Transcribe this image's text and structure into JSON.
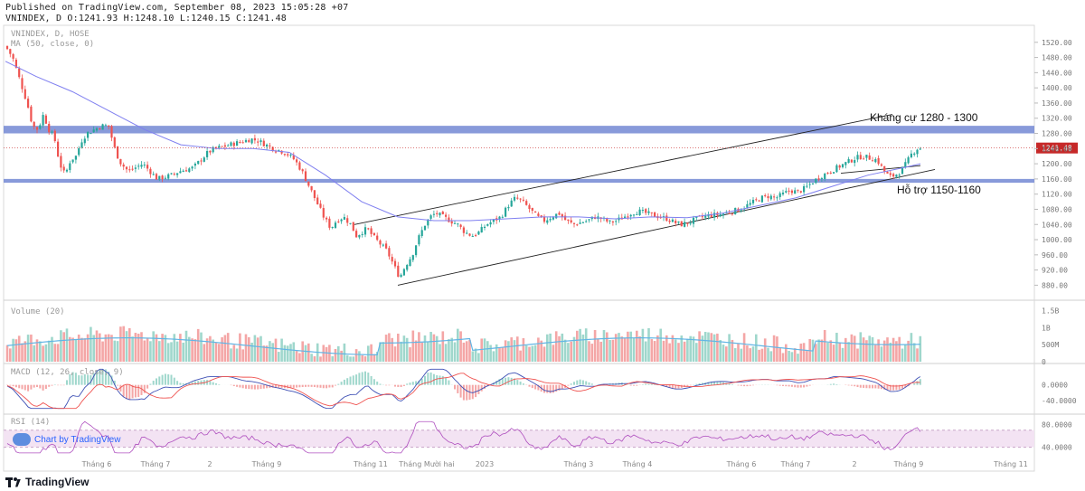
{
  "header": {
    "published": "Published on TradingView.com, September 08, 2023 15:05:28 +07",
    "ohlc": "VNINDEX, D O:1241.93 H:1248.10 L:1240.15 C:1241.48"
  },
  "legend": {
    "symbol": "VNINDEX, D, HOSE",
    "ma": "MA (50, close, 0)",
    "volume": "Volume (20)",
    "macd": "MACD (12, 26, close, 9)",
    "rsi": "RSI (14)"
  },
  "watermark": "Chart by TradingView",
  "footer_brand": "TradingView",
  "colors": {
    "up": "#26a69a",
    "down": "#ef5350",
    "zone": "#7b8fd6",
    "ma": "#7f7ff0",
    "price_label": "#c62828",
    "vol_up": "#9fd7cc",
    "vol_down": "#f4a6a6",
    "vol_ma": "#62b5e5",
    "rsi_band": "#f3e3f3",
    "rsi_line": "#9c27b0"
  },
  "chart_data": {
    "type": "candlestick",
    "title": "VNINDEX, D, HOSE",
    "last_price": 1241.48,
    "last_price_label": "1241.48",
    "ylim": [
      850,
      1560
    ],
    "y_ticks": [
      1520,
      1480,
      1440,
      1400,
      1360,
      1320,
      1280,
      1240,
      1200,
      1160,
      1120,
      1080,
      1040,
      1000,
      960,
      920,
      880
    ],
    "y_tick_labels": [
      "1520.00",
      "1480.00",
      "1440.00",
      "1400.00",
      "1360.00",
      "1320.00",
      "1280.00",
      "1240.00",
      "1200.00",
      "1160.00",
      "1120.00",
      "1080.00",
      "1040.00",
      "1000.00",
      "960.00",
      "920.00",
      "880.00"
    ],
    "x_index_range": [
      0,
      1140
    ],
    "x_ticks": [
      {
        "label": "Tháng 6",
        "x": 107
      },
      {
        "label": "Tháng 7",
        "x": 172
      },
      {
        "label": "2",
        "x": 232
      },
      {
        "label": "Tháng 9",
        "x": 295
      },
      {
        "label": "Tháng 11",
        "x": 410
      },
      {
        "label": "Tháng Mười hai",
        "x": 472
      },
      {
        "label": "2023",
        "x": 536
      },
      {
        "label": "Tháng 3",
        "x": 640
      },
      {
        "label": "Tháng 4",
        "x": 705
      },
      {
        "label": "Tháng 6",
        "x": 820
      },
      {
        "label": "Tháng 7",
        "x": 880
      },
      {
        "label": "2",
        "x": 945
      },
      {
        "label": "Tháng 9",
        "x": 1005
      },
      {
        "label": "Tháng 11",
        "x": 1118
      }
    ],
    "price_path": [
      [
        6,
        1510
      ],
      [
        14,
        1480
      ],
      [
        22,
        1420
      ],
      [
        30,
        1360
      ],
      [
        36,
        1300
      ],
      [
        42,
        1290
      ],
      [
        48,
        1330
      ],
      [
        54,
        1290
      ],
      [
        60,
        1270
      ],
      [
        66,
        1200
      ],
      [
        72,
        1170
      ],
      [
        78,
        1210
      ],
      [
        84,
        1220
      ],
      [
        90,
        1260
      ],
      [
        96,
        1280
      ],
      [
        104,
        1290
      ],
      [
        112,
        1300
      ],
      [
        120,
        1300
      ],
      [
        128,
        1230
      ],
      [
        134,
        1200
      ],
      [
        142,
        1180
      ],
      [
        150,
        1190
      ],
      [
        158,
        1200
      ],
      [
        166,
        1180
      ],
      [
        174,
        1160
      ],
      [
        182,
        1165
      ],
      [
        190,
        1170
      ],
      [
        198,
        1180
      ],
      [
        206,
        1185
      ],
      [
        214,
        1190
      ],
      [
        222,
        1210
      ],
      [
        230,
        1230
      ],
      [
        238,
        1240
      ],
      [
        246,
        1245
      ],
      [
        254,
        1250
      ],
      [
        262,
        1255
      ],
      [
        270,
        1260
      ],
      [
        278,
        1265
      ],
      [
        286,
        1260
      ],
      [
        294,
        1250
      ],
      [
        302,
        1240
      ],
      [
        310,
        1235
      ],
      [
        318,
        1225
      ],
      [
        326,
        1210
      ],
      [
        334,
        1180
      ],
      [
        342,
        1140
      ],
      [
        350,
        1100
      ],
      [
        358,
        1060
      ],
      [
        366,
        1030
      ],
      [
        372,
        1050
      ],
      [
        380,
        1060
      ],
      [
        388,
        1040
      ],
      [
        394,
        1010
      ],
      [
        400,
        1020
      ],
      [
        406,
        1030
      ],
      [
        412,
        1010
      ],
      [
        420,
        990
      ],
      [
        428,
        970
      ],
      [
        436,
        930
      ],
      [
        442,
        900
      ],
      [
        448,
        930
      ],
      [
        456,
        960
      ],
      [
        462,
        1000
      ],
      [
        470,
        1040
      ],
      [
        476,
        1060
      ],
      [
        482,
        1070
      ],
      [
        490,
        1060
      ],
      [
        498,
        1050
      ],
      [
        506,
        1040
      ],
      [
        514,
        1020
      ],
      [
        522,
        1010
      ],
      [
        530,
        1020
      ],
      [
        538,
        1040
      ],
      [
        546,
        1050
      ],
      [
        554,
        1060
      ],
      [
        562,
        1090
      ],
      [
        570,
        1110
      ],
      [
        578,
        1100
      ],
      [
        586,
        1080
      ],
      [
        594,
        1060
      ],
      [
        602,
        1050
      ],
      [
        610,
        1060
      ],
      [
        618,
        1070
      ],
      [
        626,
        1050
      ],
      [
        634,
        1040
      ],
      [
        642,
        1045
      ],
      [
        650,
        1050
      ],
      [
        658,
        1060
      ],
      [
        666,
        1055
      ],
      [
        674,
        1045
      ],
      [
        682,
        1050
      ],
      [
        690,
        1060
      ],
      [
        698,
        1070
      ],
      [
        706,
        1075
      ],
      [
        714,
        1070
      ],
      [
        722,
        1065
      ],
      [
        730,
        1060
      ],
      [
        738,
        1055
      ],
      [
        746,
        1045
      ],
      [
        754,
        1040
      ],
      [
        762,
        1045
      ],
      [
        770,
        1055
      ],
      [
        778,
        1060
      ],
      [
        786,
        1065
      ],
      [
        794,
        1065
      ],
      [
        802,
        1070
      ],
      [
        810,
        1075
      ],
      [
        818,
        1080
      ],
      [
        826,
        1090
      ],
      [
        834,
        1100
      ],
      [
        842,
        1110
      ],
      [
        850,
        1115
      ],
      [
        858,
        1110
      ],
      [
        866,
        1120
      ],
      [
        874,
        1130
      ],
      [
        882,
        1125
      ],
      [
        890,
        1135
      ],
      [
        898,
        1150
      ],
      [
        906,
        1165
      ],
      [
        914,
        1175
      ],
      [
        922,
        1185
      ],
      [
        930,
        1195
      ],
      [
        938,
        1205
      ],
      [
        946,
        1215
      ],
      [
        954,
        1220
      ],
      [
        962,
        1215
      ],
      [
        970,
        1210
      ],
      [
        978,
        1180
      ],
      [
        984,
        1165
      ],
      [
        990,
        1170
      ],
      [
        996,
        1180
      ],
      [
        1002,
        1200
      ],
      [
        1008,
        1225
      ],
      [
        1014,
        1240
      ],
      [
        1018,
        1241
      ]
    ],
    "ma_path": [
      [
        6,
        1470
      ],
      [
        40,
        1430
      ],
      [
        80,
        1390
      ],
      [
        120,
        1340
      ],
      [
        160,
        1290
      ],
      [
        200,
        1250
      ],
      [
        240,
        1240
      ],
      [
        280,
        1240
      ],
      [
        320,
        1230
      ],
      [
        360,
        1170
      ],
      [
        400,
        1100
      ],
      [
        440,
        1060
      ],
      [
        480,
        1050
      ],
      [
        520,
        1050
      ],
      [
        560,
        1055
      ],
      [
        600,
        1060
      ],
      [
        640,
        1060
      ],
      [
        680,
        1055
      ],
      [
        720,
        1060
      ],
      [
        760,
        1058
      ],
      [
        800,
        1070
      ],
      [
        840,
        1090
      ],
      [
        880,
        1110
      ],
      [
        920,
        1140
      ],
      [
        960,
        1170
      ],
      [
        1000,
        1190
      ],
      [
        1018,
        1200
      ]
    ],
    "zones": [
      {
        "name": "resistance",
        "low": 1280,
        "high": 1300,
        "label": "Kháng cự 1280 - 1300",
        "label_x": 962
      },
      {
        "name": "support",
        "low": 1150,
        "high": 1160,
        "label": "Hỗ trợ 1150-1160",
        "label_x": 992
      }
    ],
    "trendlines": [
      {
        "name": "channel-upper",
        "x1": 392,
        "y1": 1040,
        "x2": 987,
        "y2": 1330
      },
      {
        "name": "channel-lower",
        "x1": 440,
        "y1": 880,
        "x2": 1034,
        "y2": 1185
      },
      {
        "name": "inner-upper",
        "x1": 930,
        "y1": 1175,
        "x2": 1018,
        "y2": 1195
      }
    ],
    "volume": {
      "ylim": [
        0,
        1700
      ],
      "tick_labels": [
        "1.5B",
        "1B",
        "500M",
        "0"
      ],
      "tick_values": [
        1500,
        1000,
        500,
        0
      ]
    },
    "macd": {
      "ylim": [
        -70,
        50
      ],
      "tick_labels": [
        "0.0000",
        "-40.0000"
      ],
      "tick_values": [
        0,
        -40
      ]
    },
    "rsi": {
      "ylim": [
        25,
        95
      ],
      "tick_labels": [
        "80.0000",
        "40.0000"
      ],
      "tick_values": [
        80,
        40
      ],
      "band": [
        40,
        70
      ]
    }
  }
}
